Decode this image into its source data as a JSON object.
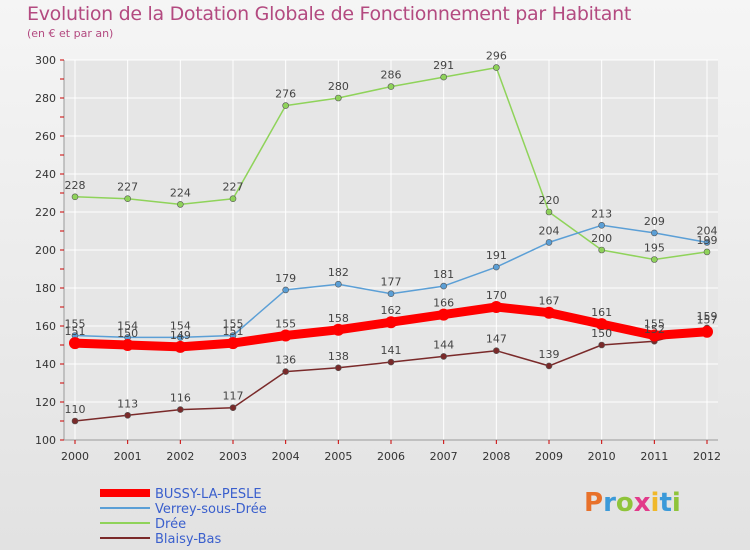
{
  "title": "Evolution de la Dotation Globale de Fonctionnement par Habitant",
  "subtitle": "(en € et par an)",
  "logo_text": "Proxiti",
  "colors": {
    "title": "#b34a80",
    "grid": "#ffffff",
    "axis_labels": "#333333",
    "axis_ticks": "#cc0000"
  },
  "chart_data": {
    "type": "line",
    "x": [
      2000,
      2001,
      2002,
      2003,
      2004,
      2005,
      2006,
      2007,
      2008,
      2009,
      2010,
      2011,
      2012
    ],
    "ylim": [
      100,
      300
    ],
    "yticks": [
      100,
      120,
      140,
      160,
      180,
      200,
      220,
      240,
      260,
      280,
      300
    ],
    "grid": true,
    "legend_position": "bottom-left",
    "series": [
      {
        "name": "BUSSY-LA-PESLE",
        "color": "#ff0000",
        "values": [
          151,
          150,
          149,
          151,
          155,
          158,
          162,
          166,
          170,
          167,
          161,
          155,
          157
        ],
        "labels": [
          "151",
          "150",
          "149",
          "151",
          "155",
          "158",
          "162",
          "166",
          "170",
          "167",
          "161",
          "155",
          "157"
        ]
      },
      {
        "name": "Verrey-sous-Drée",
        "color": "#5b9fd6",
        "values": [
          155,
          154,
          154,
          155,
          179,
          182,
          177,
          181,
          191,
          204,
          213,
          209,
          204
        ],
        "labels": [
          "155",
          "154",
          "154",
          "155",
          "179",
          "182",
          "177",
          "181",
          "191",
          "204",
          "213",
          "209",
          "204"
        ]
      },
      {
        "name": "Drée",
        "color": "#8fd35a",
        "values": [
          228,
          227,
          224,
          227,
          276,
          280,
          286,
          291,
          296,
          220,
          200,
          195,
          199
        ],
        "labels": [
          "228",
          "227",
          "224",
          "227",
          "276",
          "280",
          "286",
          "291",
          "296",
          "220",
          "200",
          "195",
          "199"
        ]
      },
      {
        "name": "Blaisy-Bas",
        "color": "#7a2a2a",
        "values": [
          110,
          113,
          116,
          117,
          136,
          138,
          141,
          144,
          147,
          139,
          150,
          152,
          159
        ],
        "labels": [
          "110",
          "113",
          "116",
          "117",
          "136",
          "138",
          "141",
          "144",
          "147",
          "139",
          "150",
          "152",
          "159"
        ]
      }
    ]
  }
}
